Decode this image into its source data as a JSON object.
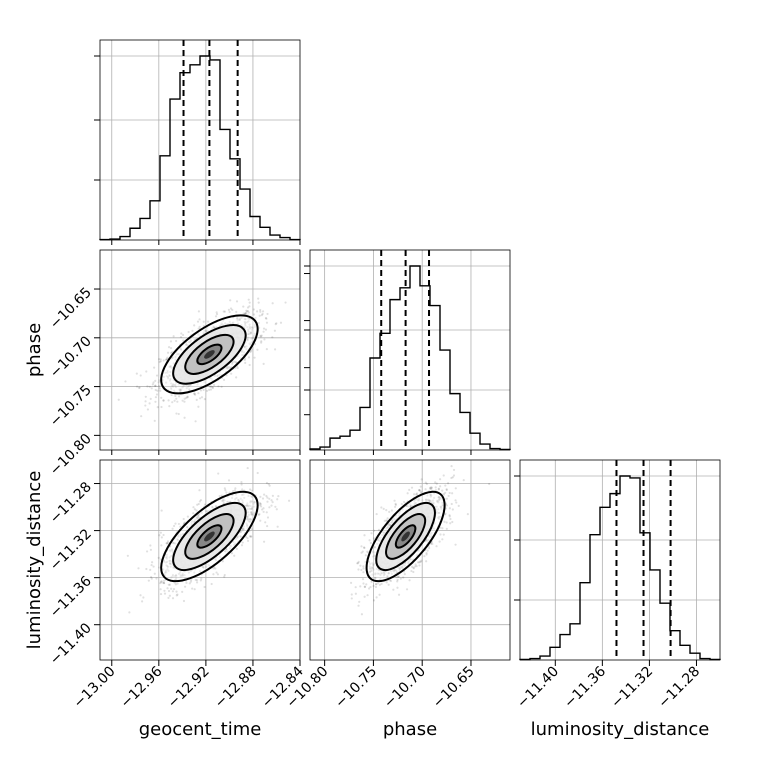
{
  "chart_data": {
    "type": "corner",
    "parameters": [
      "geocent_time",
      "phase",
      "luminosity_distance"
    ],
    "grid": true,
    "axes": {
      "geocent_time": {
        "label": "geocent_time",
        "range": [
          -13.01,
          -12.84
        ],
        "ticks": [
          -13.0,
          -12.96,
          -12.92,
          -12.88,
          -12.84
        ],
        "tick_labels": [
          "−13.00",
          "−12.96",
          "−12.92",
          "−12.88",
          "−12.84"
        ]
      },
      "phase": {
        "label": "phase",
        "range": [
          -10.815,
          -10.61
        ],
        "ticks": [
          -10.8,
          -10.75,
          -10.7,
          -10.65
        ],
        "tick_labels": [
          "−10.80",
          "−10.75",
          "−10.70",
          "−10.65"
        ]
      },
      "luminosity_distance": {
        "label": "luminosity_distance",
        "range": [
          -11.43,
          -11.26
        ],
        "ticks": [
          -11.4,
          -11.36,
          -11.32,
          -11.28
        ],
        "tick_labels": [
          "−11.40",
          "−11.36",
          "−11.32",
          "−11.28"
        ]
      }
    },
    "histograms": [
      {
        "parameter": "geocent_time",
        "bins": 20,
        "counts": [
          0.4,
          1.0,
          3.5,
          12,
          22,
          40,
          86,
          144,
          171,
          179,
          188,
          184,
          113,
          83,
          52,
          24,
          13,
          5,
          2.5,
          0.4
        ],
        "quantiles": [
          -12.939,
          -12.917,
          -12.893
        ]
      },
      {
        "parameter": "phase",
        "bins": 20,
        "counts": [
          1.0,
          3.0,
          12,
          14,
          20,
          43,
          93,
          118,
          152,
          164,
          186,
          166,
          146,
          101,
          57,
          38,
          17,
          6,
          1.5,
          0.5
        ],
        "quantiles": [
          -10.742,
          -10.717,
          -10.693
        ]
      },
      {
        "parameter": "luminosity_distance",
        "bins": 20,
        "counts": [
          0.5,
          1.5,
          4,
          13,
          26,
          37,
          79,
          128,
          156,
          170,
          188,
          186,
          130,
          92,
          58,
          30,
          15,
          7,
          1.5,
          0.5
        ],
        "quantiles": [
          -11.348,
          -11.325,
          -11.302
        ]
      }
    ],
    "panels_2d": [
      {
        "x": "geocent_time",
        "y": "phase",
        "mean": [
          -12.917,
          -10.717
        ],
        "sd": [
          0.0205,
          0.02
        ],
        "rho": 0.65
      },
      {
        "x": "geocent_time",
        "y": "luminosity_distance",
        "mean": [
          -12.917,
          -11.325
        ],
        "sd": [
          0.0205,
          0.019
        ],
        "rho": 0.7
      },
      {
        "x": "phase",
        "y": "luminosity_distance",
        "mean": [
          -10.717,
          -11.325
        ],
        "sd": [
          0.02,
          0.019
        ],
        "rho": 0.7
      }
    ],
    "contour_levels_sigma": [
      0.5,
      1.0,
      1.5,
      2.0
    ]
  }
}
